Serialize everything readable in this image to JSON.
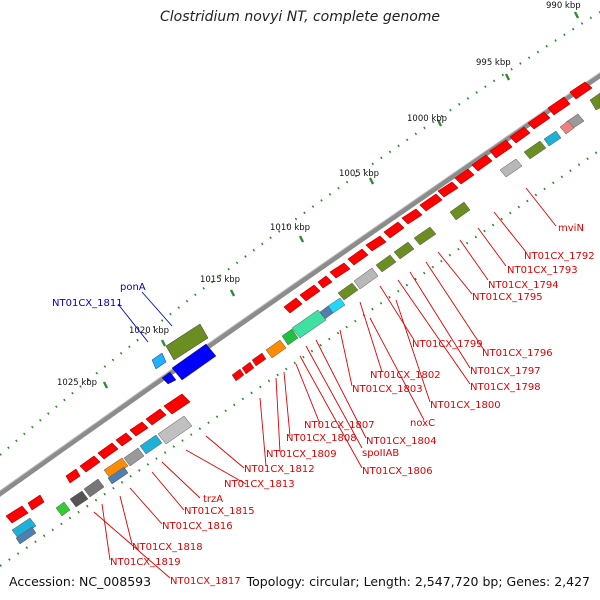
{
  "title": "Clostridium novyi NT, complete genome",
  "footer": {
    "accession": "Accession: NC_008593",
    "summary": "Topology: circular; Length: 2,547,720 bp; Genes: 2,427"
  },
  "colors": {
    "backbone": "#8c8c8c",
    "tick": "#2a8a2a",
    "feature_red": "#ff0000",
    "feature_blue": "#0000ff",
    "label_red": "#e00000",
    "label_blue": "#0000cc"
  },
  "scale_labels": [
    "990 kbp",
    "995 kbp",
    "1000 kbp",
    "1005 kbp",
    "1010 kbp",
    "1015 kbp",
    "1020 kbp",
    "1025 kbp"
  ],
  "gene_labels": [
    "mviN",
    "NT01CX_1792",
    "NT01CX_1793",
    "NT01CX_1794",
    "NT01CX_1795",
    "NT01CX_1796",
    "NT01CX_1797",
    "NT01CX_1798",
    "NT01CX_1799",
    "NT01CX_1800",
    "NT01CX_1802",
    "noxC",
    "NT01CX_1803",
    "NT01CX_1804",
    "spoIIAB",
    "NT01CX_1806",
    "NT01CX_1807",
    "NT01CX_1808",
    "NT01CX_1809",
    "NT01CX_1812",
    "NT01CX_1813",
    "trzA",
    "NT01CX_1815",
    "NT01CX_1816",
    "NT01CX_1818",
    "NT01CX_1819",
    "NT01CX_1817",
    "ponA",
    "NT01CX_1811"
  ]
}
